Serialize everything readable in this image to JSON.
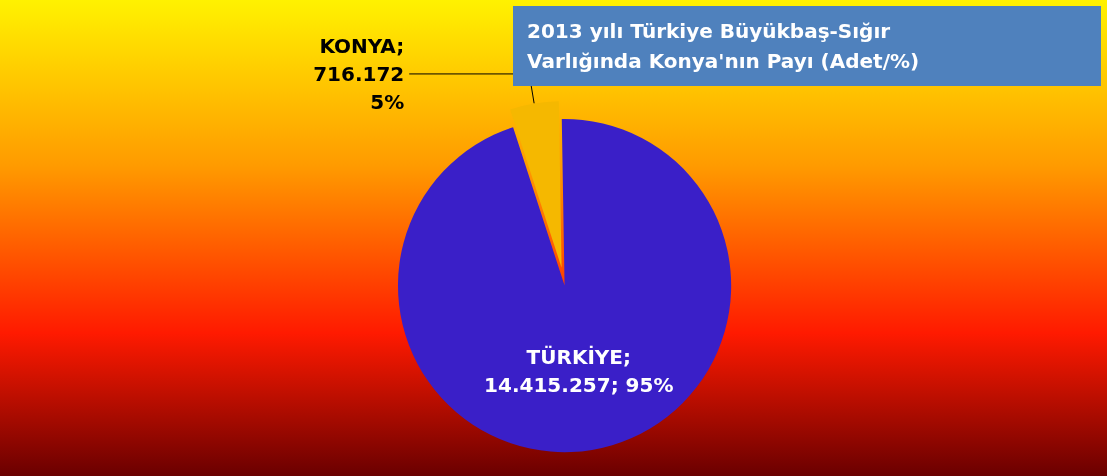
{
  "chart_data": {
    "type": "pie",
    "title": "2013 yılı Türkiye Büyükbaş-Sığır Varlığında Konya'nın Payı (Adet/%)",
    "categories": [
      "KONYA",
      "TÜRKİYE"
    ],
    "values": [
      716172,
      14415257
    ],
    "colors": [
      "#f5b800",
      "#3a1fc8"
    ],
    "value_labels": [
      ";\n716.172\n5%",
      ";\n14.415.257; 95%"
    ]
  }
}
